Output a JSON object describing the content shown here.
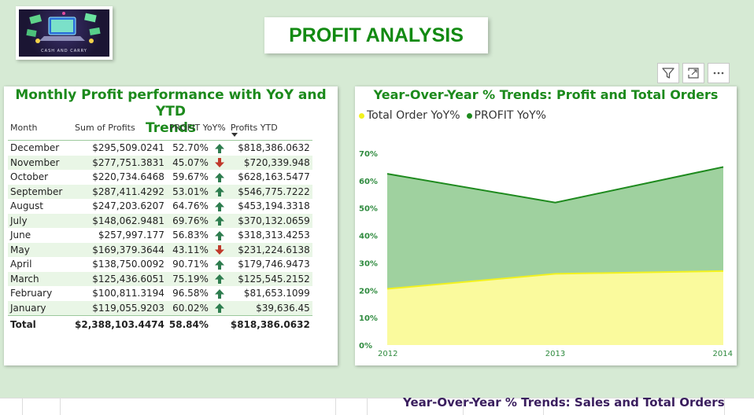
{
  "page_title": "PROFIT ANALYSIS",
  "logo": {
    "text": "CASH AND CARRY",
    "icon": "laptop-money-logo"
  },
  "toolbar": {
    "filter_icon": "filter-icon",
    "focus_icon": "focus-mode-icon",
    "more_icon": "more-options-icon"
  },
  "table": {
    "title_line1": "Monthly Profit performance with YoY and YTD",
    "title_line2": "Trends",
    "columns": [
      "Month",
      "Sum of Profits",
      "PROFIT YoY%",
      "Profits YTD"
    ],
    "rows": [
      {
        "month": "December",
        "profit": "$295,509.0241",
        "yoy": "52.70%",
        "trend": "up",
        "ytd": "$818,386.0632"
      },
      {
        "month": "November",
        "profit": "$277,751.3831",
        "yoy": "45.07%",
        "trend": "down",
        "ytd": "$720,339.948"
      },
      {
        "month": "October",
        "profit": "$220,734.6468",
        "yoy": "59.67%",
        "trend": "up",
        "ytd": "$628,163.5477"
      },
      {
        "month": "September",
        "profit": "$287,411.4292",
        "yoy": "53.01%",
        "trend": "up",
        "ytd": "$546,775.7222"
      },
      {
        "month": "August",
        "profit": "$247,203.6207",
        "yoy": "64.76%",
        "trend": "up",
        "ytd": "$453,194.3318"
      },
      {
        "month": "July",
        "profit": "$148,062.9481",
        "yoy": "69.76%",
        "trend": "up",
        "ytd": "$370,132.0659"
      },
      {
        "month": "June",
        "profit": "$257,997.177",
        "yoy": "56.83%",
        "trend": "up",
        "ytd": "$318,313.4253"
      },
      {
        "month": "May",
        "profit": "$169,379.3644",
        "yoy": "43.11%",
        "trend": "down",
        "ytd": "$231,224.6138"
      },
      {
        "month": "April",
        "profit": "$138,750.0092",
        "yoy": "90.71%",
        "trend": "up",
        "ytd": "$179,746.9473"
      },
      {
        "month": "March",
        "profit": "$125,436.6051",
        "yoy": "75.19%",
        "trend": "up",
        "ytd": "$125,545.2152"
      },
      {
        "month": "February",
        "profit": "$100,811.3194",
        "yoy": "96.58%",
        "trend": "up",
        "ytd": "$81,653.1099"
      },
      {
        "month": "January",
        "profit": "$119,055.9203",
        "yoy": "60.02%",
        "trend": "up",
        "ytd": "$39,636.45"
      }
    ],
    "total": {
      "label": "Total",
      "profit": "$2,388,103.4474",
      "yoy": "58.84%",
      "ytd": "$818,386.0632"
    },
    "colors": {
      "up": "#2e7d4f",
      "down": "#c0392b"
    }
  },
  "chart_data": {
    "type": "area",
    "title": "Year-Over-Year % Trends: Profit and Total Orders",
    "x": [
      "2012",
      "2013",
      "2014"
    ],
    "ylim": [
      0,
      70
    ],
    "yticks": [
      "0%",
      "10%",
      "20%",
      "30%",
      "40%",
      "50%",
      "60%",
      "70%"
    ],
    "legend_position": "top-left",
    "series": [
      {
        "name": "PROFIT YoY%",
        "values": [
          62.5,
          52,
          65
        ],
        "color": "#1e8a1e",
        "fill": "#9fd19f"
      },
      {
        "name": "Total Order YoY%",
        "values": [
          20.5,
          26,
          27
        ],
        "color": "#f2f21e",
        "fill": "#fafa9d"
      }
    ]
  },
  "bottom_partial_title": "Year-Over-Year % Trends: Sales and Total Orders"
}
